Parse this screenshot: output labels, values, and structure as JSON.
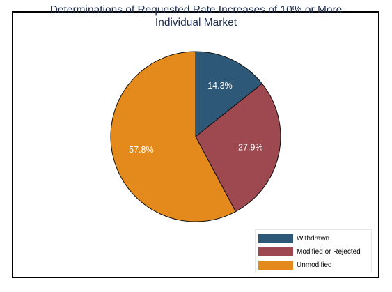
{
  "chart_data": {
    "type": "pie",
    "title_lines": [
      "Determinations of Requested Rate Increases of 10% or More",
      "Individual Market"
    ],
    "slices": [
      {
        "name": "Withdrawn",
        "value": 14.3,
        "label": "14.3%",
        "color": "#2e5878"
      },
      {
        "name": "Modified or Rejected",
        "value": 27.9,
        "label": "27.9%",
        "color": "#9e4850"
      },
      {
        "name": "Unmodified",
        "value": 57.8,
        "label": "57.8%",
        "color": "#e48a1c"
      }
    ],
    "legend_position": "bottom-right",
    "start_angle": "12 o'clock",
    "direction": "clockwise"
  }
}
